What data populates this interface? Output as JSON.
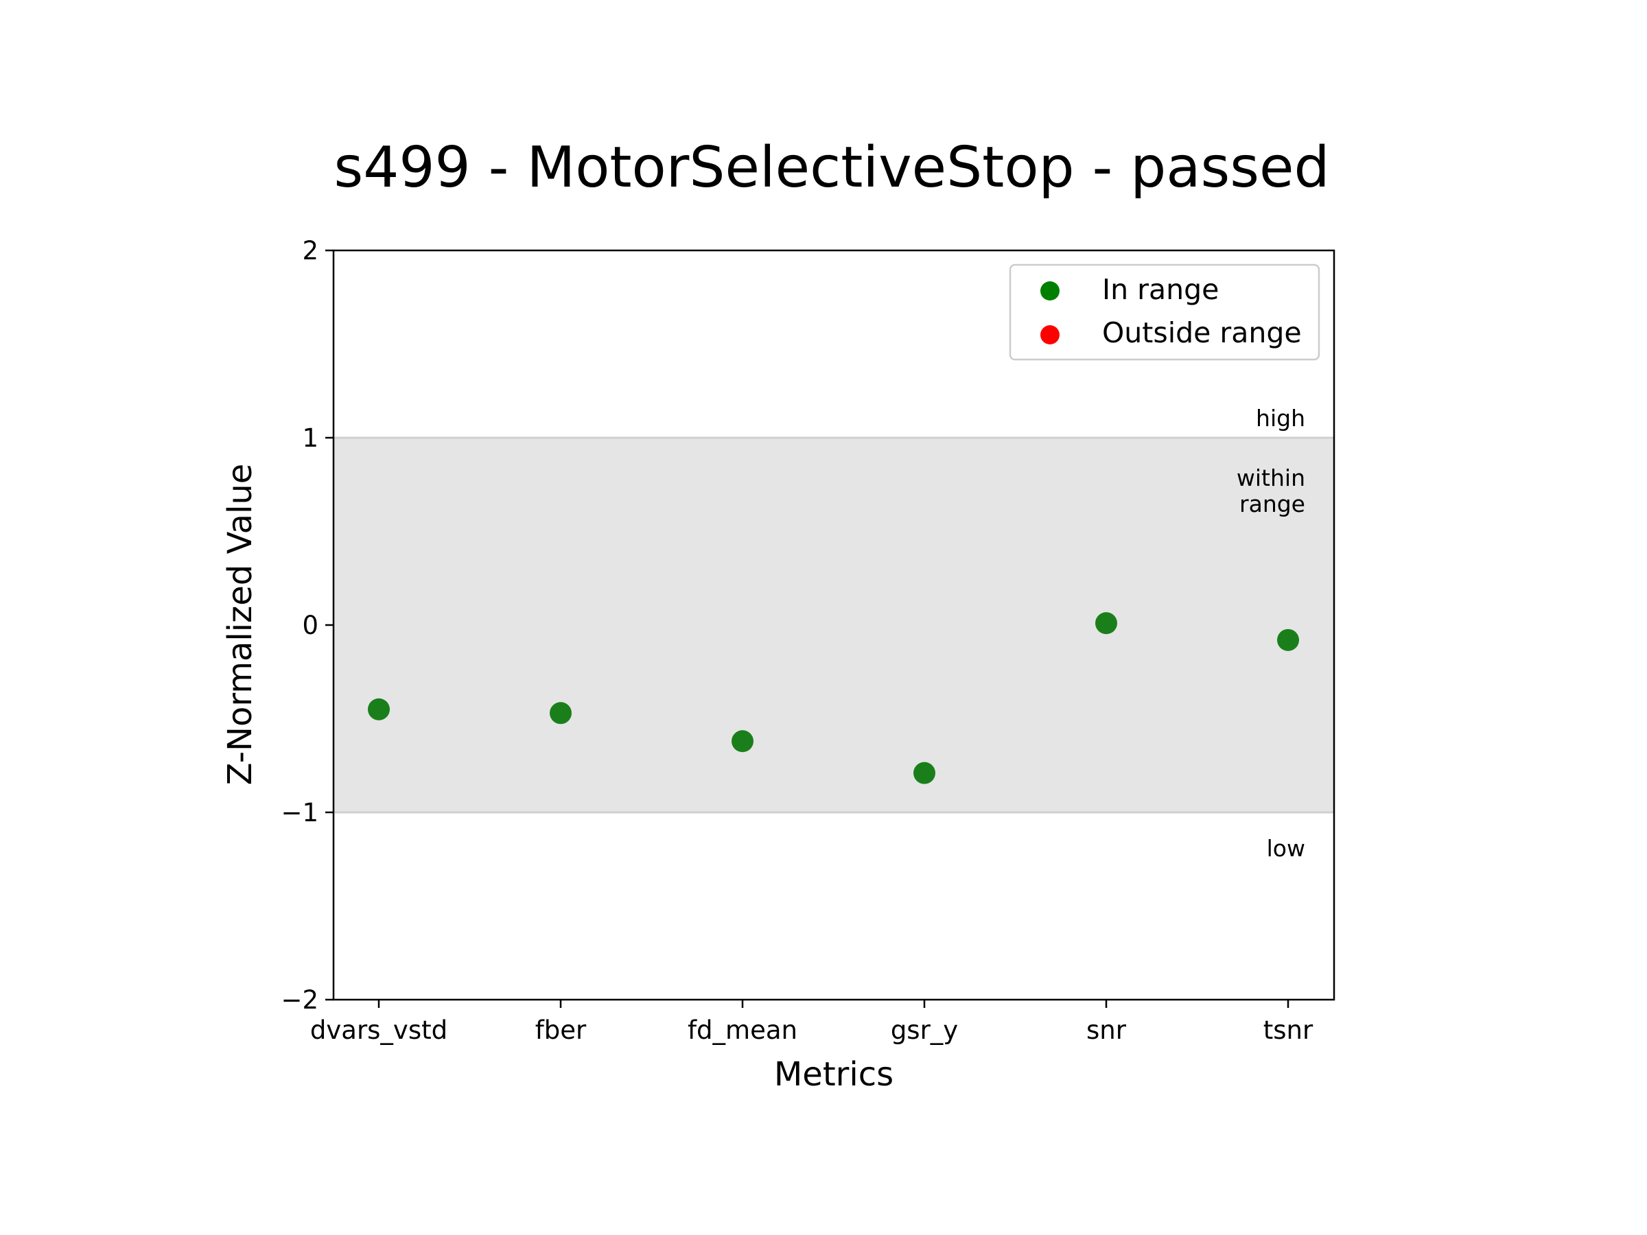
{
  "chart_data": {
    "type": "scatter",
    "title": "s499 - MotorSelectiveStop - passed",
    "xlabel": "Metrics",
    "ylabel": "Z-Normalized Value",
    "ylim": [
      -2,
      2
    ],
    "yticks": [
      "2",
      "1",
      "0",
      "−1",
      "−2"
    ],
    "ytick_values": [
      2,
      1,
      0,
      -1,
      -2
    ],
    "categories": [
      "dvars_vstd",
      "fber",
      "fd_mean",
      "gsr_y",
      "snr",
      "tsnr"
    ],
    "series": [
      {
        "name": "In range",
        "color": "#1a7f1a",
        "values": [
          -0.45,
          -0.47,
          -0.62,
          -0.79,
          0.01,
          -0.08
        ]
      }
    ],
    "band": {
      "from": -1,
      "to": 1,
      "color": "#e5e5e5"
    },
    "band_labels": {
      "high": "high",
      "within_line1": "within",
      "within_line2": "range",
      "low": "low"
    },
    "legend": {
      "placement": "top-right",
      "items": [
        {
          "label": "In range",
          "color": "#008000"
        },
        {
          "label": "Outside range",
          "color": "#ff0000"
        }
      ]
    },
    "grid": false
  }
}
